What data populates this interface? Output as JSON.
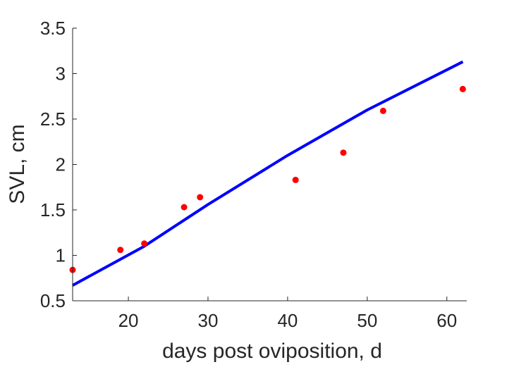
{
  "chart_data": {
    "type": "scatter",
    "title": "",
    "xlabel": "days post oviposition, d",
    "ylabel": "SVL, cm",
    "xlim": [
      13,
      62.5
    ],
    "ylim": [
      0.5,
      3.5
    ],
    "xticks": [
      20,
      30,
      40,
      50,
      60
    ],
    "yticks": [
      0.5,
      1,
      1.5,
      2,
      2.5,
      3,
      3.5
    ],
    "xtick_labels": [
      "20",
      "30",
      "40",
      "50",
      "60"
    ],
    "ytick_labels": [
      "0.5",
      "1",
      "1.5",
      "2",
      "2.5",
      "3",
      "3.5"
    ],
    "grid": false,
    "box": "axes lines on left and bottom only",
    "series": [
      {
        "kind": "scatter",
        "color": "#ff0000",
        "marker": "filled-circle",
        "x": [
          13,
          19,
          22,
          27,
          29,
          41,
          47,
          52,
          62
        ],
        "y": [
          0.84,
          1.06,
          1.13,
          1.53,
          1.64,
          1.83,
          2.13,
          2.59,
          2.83
        ]
      },
      {
        "kind": "line",
        "color": "#0000ff",
        "x": [
          13,
          22,
          30,
          40,
          50,
          62
        ],
        "y": [
          0.67,
          1.1,
          1.56,
          2.1,
          2.6,
          3.13
        ]
      }
    ]
  }
}
